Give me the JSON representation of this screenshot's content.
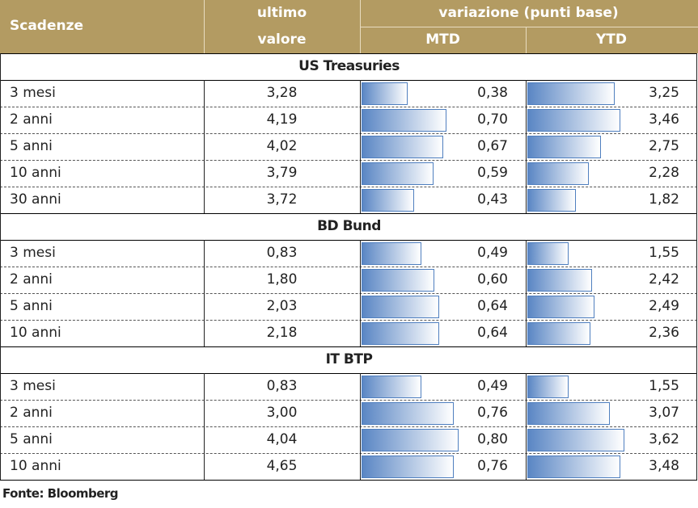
{
  "header": {
    "maturity": "Scadenze",
    "last_value": [
      "ultimo",
      "valore"
    ],
    "change": "variazione (punti base)",
    "mtd": "MTD",
    "ytd": "YTD"
  },
  "sections": [
    {
      "title": "US Treasuries",
      "rows": [
        [
          "3 mesi",
          "3,28",
          "0,38",
          "3,25"
        ],
        [
          "2 anni",
          "4,19",
          "0,70",
          "3,46"
        ],
        [
          "5 anni",
          "4,02",
          "0,67",
          "2,75"
        ],
        [
          "10 anni",
          "3,79",
          "0,59",
          "2,28"
        ],
        [
          "30 anni",
          "3,72",
          "0,43",
          "1,82"
        ]
      ]
    },
    {
      "title": "BD Bund",
      "rows": [
        [
          "3 mesi",
          "0,83",
          "0,49",
          "1,55"
        ],
        [
          "2 anni",
          "1,80",
          "0,60",
          "2,42"
        ],
        [
          "5 anni",
          "2,03",
          "0,64",
          "2,49"
        ],
        [
          "10 anni",
          "2,18",
          "0,64",
          "2,36"
        ]
      ]
    },
    {
      "title": "IT BTP",
      "rows": [
        [
          "3 mesi",
          "0,83",
          "0,49",
          "1,55"
        ],
        [
          "2 anni",
          "3,00",
          "0,76",
          "3,07"
        ],
        [
          "5 anni",
          "4,04",
          "0,80",
          "3,62"
        ],
        [
          "10 anni",
          "4,65",
          "0,76",
          "3,48"
        ]
      ]
    }
  ],
  "source": "Fonte: Bloomberg"
}
